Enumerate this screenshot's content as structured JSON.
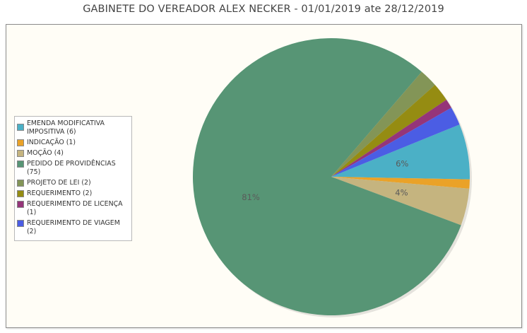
{
  "chart_data": {
    "type": "pie",
    "title": "GABINETE DO VEREADOR ALEX NECKER - 01/01/2019 ate 28/12/2019",
    "legend_position": "left",
    "slices": [
      {
        "label": "EMENDA MODIFICATIVA IMPOSITIVA (6)",
        "value": 6,
        "color": "#4bb0c6",
        "pct_label": "6%"
      },
      {
        "label": "INDICAÇÃO (1)",
        "value": 1,
        "color": "#eaa228",
        "pct_label": ""
      },
      {
        "label": "MOÇÃO (4)",
        "value": 4,
        "color": "#c5b47f",
        "pct_label": "4%"
      },
      {
        "label": "PEDIDO DE PROVIDÊNCIAS (75)",
        "value": 75,
        "color": "#579575",
        "pct_label": "81%"
      },
      {
        "label": "PROJETO DE LEI (2)",
        "value": 2,
        "color": "#839557",
        "pct_label": ""
      },
      {
        "label": "REQUERIMENTO (2)",
        "value": 2,
        "color": "#958c12",
        "pct_label": ""
      },
      {
        "label": "REQUERIMENTO DE LICENÇA (1)",
        "value": 1,
        "color": "#953579",
        "pct_label": ""
      },
      {
        "label": "REQUERIMENTO DE VIAGEM (2)",
        "value": 2,
        "color": "#4b5de4",
        "pct_label": ""
      }
    ]
  }
}
